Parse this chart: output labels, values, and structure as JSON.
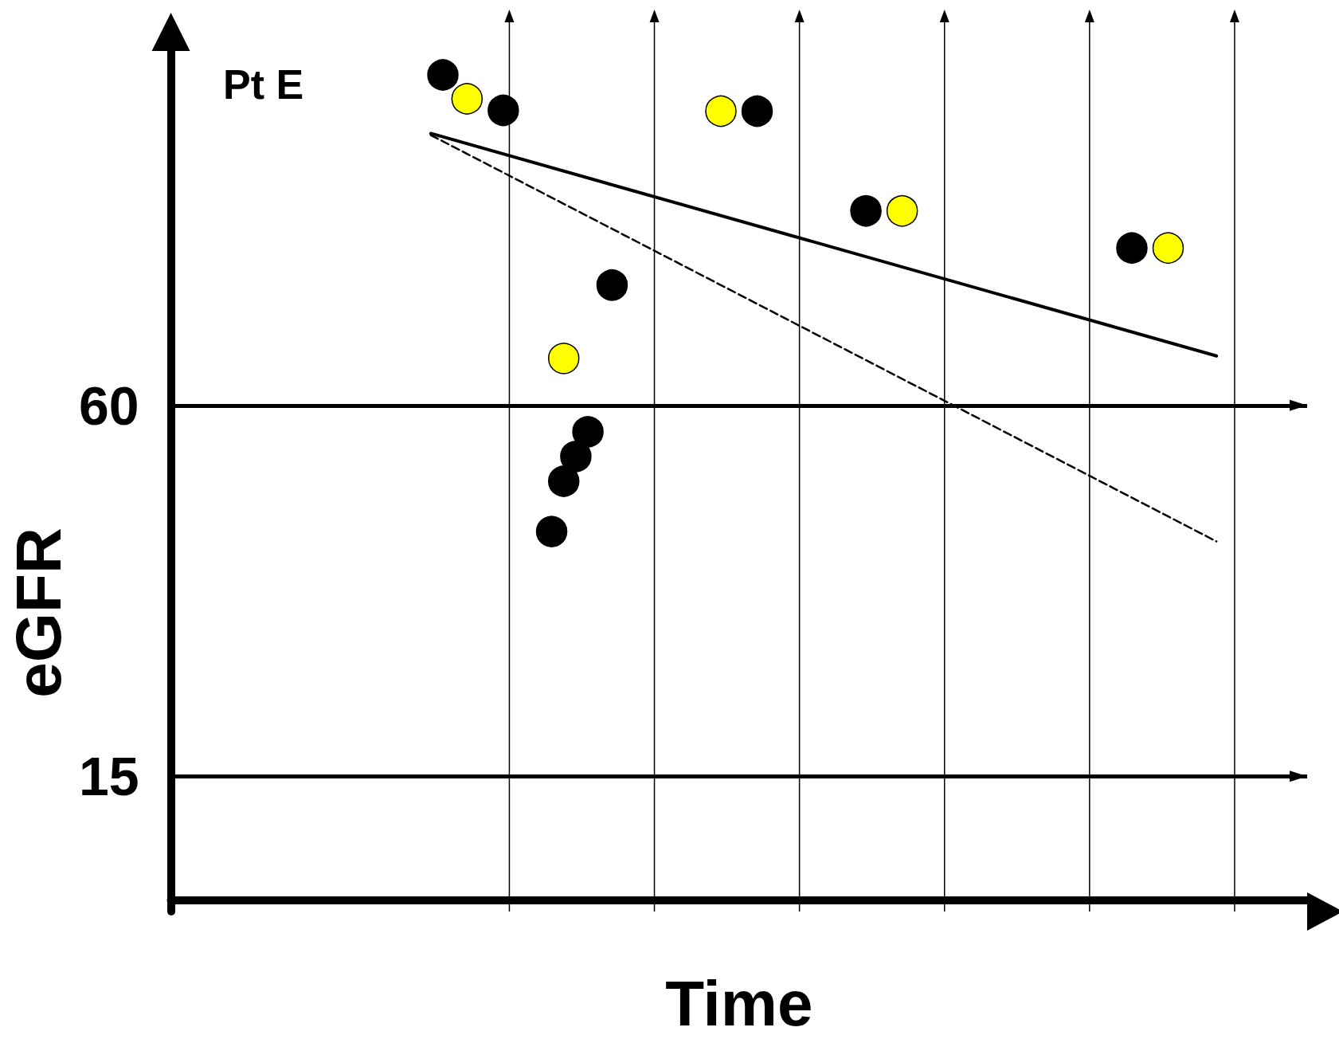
{
  "chart_data": {
    "type": "scatter",
    "title": "Pt E",
    "xlabel": "Time",
    "ylabel": "eGFR",
    "categories": [
      null,
      null,
      null,
      null,
      null,
      null,
      null,
      null,
      null,
      null,
      null,
      null,
      null,
      null,
      null,
      null,
      null,
      null,
      null,
      null,
      null,
      null,
      null,
      null,
      null,
      null,
      null,
      null,
      null,
      null,
      null,
      null,
      null,
      null,
      null,
      null,
      null,
      null,
      null,
      null,
      null,
      null,
      null,
      null,
      null,
      null,
      null,
      null,
      null,
      null,
      null,
      null,
      null,
      null,
      null,
      null,
      null,
      null,
      null,
      null,
      null,
      null,
      null,
      null,
      null,
      null,
      null,
      null,
      null,
      null,
      null,
      null,
      null,
      null,
      null,
      null,
      null,
      null,
      null,
      null,
      null,
      null,
      null,
      null,
      null,
      null,
      null,
      null,
      null,
      null,
      null,
      null,
      null,
      null
    ],
    "ylim": [
      -1.4,
      103
    ],
    "yticks": [
      60,
      15
    ],
    "tick_labels": "y",
    "grid": false,
    "marker": "circle",
    "ref_lines": [
      {
        "axis": "y",
        "value": 60
      },
      {
        "axis": "y",
        "value": 15
      }
    ],
    "series": [
      {
        "color": "#000000",
        "values": [
          null,
          null,
          null,
          null,
          null,
          null,
          null,
          null,
          null,
          null,
          null,
          null,
          null,
          null,
          null,
          null,
          null,
          null,
          null,
          null,
          null,
          null,
          100.1,
          null,
          null,
          null,
          null,
          95.8,
          null,
          null,
          null,
          44.7,
          50.8,
          53.8,
          56.8,
          null,
          74.6,
          null,
          null,
          null,
          null,
          null,
          null,
          null,
          null,
          null,
          null,
          null,
          95.7,
          null,
          null,
          null,
          null,
          null,
          null,
          null,
          null,
          83.6,
          null,
          null,
          null,
          null,
          null,
          null,
          null,
          null,
          null,
          null,
          null,
          null,
          null,
          null,
          null,
          null,
          null,
          null,
          null,
          null,
          null,
          79.1,
          null,
          null,
          null,
          null,
          null,
          null,
          null,
          null,
          null,
          null,
          null,
          null,
          null,
          null
        ]
      },
      {
        "color": "#ffff00",
        "values": [
          null,
          null,
          null,
          null,
          null,
          null,
          null,
          null,
          null,
          null,
          null,
          null,
          null,
          null,
          null,
          null,
          null,
          null,
          null,
          null,
          null,
          null,
          null,
          null,
          97.2,
          null,
          null,
          null,
          null,
          null,
          null,
          null,
          65.7,
          null,
          null,
          null,
          null,
          null,
          null,
          null,
          null,
          null,
          null,
          null,
          null,
          95.7,
          null,
          null,
          null,
          null,
          null,
          null,
          null,
          null,
          null,
          null,
          null,
          null,
          null,
          null,
          83.6,
          null,
          null,
          null,
          null,
          null,
          null,
          null,
          null,
          null,
          null,
          null,
          null,
          null,
          null,
          null,
          null,
          null,
          null,
          null,
          null,
          null,
          79.1,
          null,
          null,
          null,
          null,
          null,
          null,
          null,
          null,
          null,
          null,
          null
        ]
      },
      {
        "type": "line",
        "color": "#000000",
        "marker": "none",
        "line_style": "solid",
        "values": [
          null,
          null,
          null,
          null,
          null,
          null,
          null,
          null,
          null,
          null,
          null,
          null,
          null,
          null,
          null,
          null,
          null,
          null,
          null,
          null,
          null,
          93.0,
          null,
          null,
          null,
          null,
          null,
          null,
          null,
          null,
          null,
          null,
          null,
          null,
          null,
          null,
          null,
          null,
          null,
          null,
          null,
          null,
          null,
          null,
          null,
          null,
          null,
          null,
          null,
          null,
          null,
          null,
          null,
          null,
          null,
          null,
          null,
          null,
          null,
          null,
          null,
          null,
          null,
          null,
          null,
          null,
          null,
          null,
          null,
          null,
          null,
          null,
          null,
          null,
          null,
          null,
          null,
          null,
          null,
          null,
          null,
          null,
          null,
          null,
          null,
          null,
          66.0,
          null,
          null,
          null,
          null,
          null,
          null,
          null
        ]
      },
      {
        "type": "line",
        "color": "#000000",
        "marker": "none",
        "line_style": "dashed",
        "values": [
          null,
          null,
          null,
          null,
          null,
          null,
          null,
          null,
          null,
          null,
          null,
          null,
          null,
          null,
          null,
          null,
          null,
          null,
          null,
          null,
          null,
          92.8,
          null,
          null,
          null,
          null,
          null,
          null,
          null,
          null,
          null,
          null,
          null,
          null,
          null,
          null,
          null,
          null,
          null,
          null,
          null,
          null,
          null,
          null,
          null,
          null,
          null,
          null,
          null,
          null,
          null,
          null,
          null,
          null,
          null,
          null,
          null,
          null,
          null,
          null,
          null,
          null,
          null,
          null,
          null,
          null,
          null,
          null,
          null,
          null,
          null,
          null,
          null,
          null,
          null,
          null,
          null,
          null,
          null,
          null,
          null,
          null,
          null,
          null,
          null,
          null,
          43.5,
          null,
          null,
          null,
          null,
          null,
          null,
          null
        ]
      }
    ]
  }
}
